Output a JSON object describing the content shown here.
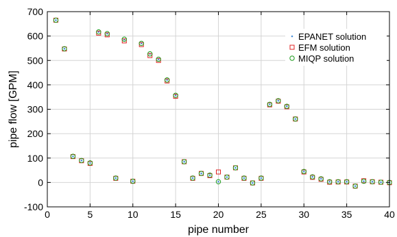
{
  "chart_data": {
    "type": "scatter",
    "title": "",
    "xlabel": "pipe number",
    "ylabel": "pipe flow [GPM]",
    "xlim": [
      0,
      40
    ],
    "ylim": [
      -100,
      700
    ],
    "xticks": [
      0,
      5,
      10,
      15,
      20,
      25,
      30,
      35,
      40
    ],
    "yticks": [
      -100,
      0,
      100,
      200,
      300,
      400,
      500,
      600,
      700
    ],
    "grid": true,
    "legend_position": "top-right",
    "x": [
      1,
      2,
      3,
      4,
      5,
      6,
      7,
      8,
      9,
      10,
      11,
      12,
      13,
      14,
      15,
      16,
      17,
      18,
      19,
      20,
      21,
      22,
      23,
      24,
      25,
      26,
      27,
      28,
      29,
      30,
      31,
      32,
      33,
      34,
      35,
      36,
      37,
      38,
      39,
      40
    ],
    "series": [
      {
        "name": "EPANET solution",
        "marker": "dot",
        "color": "#4a90d9",
        "values": [
          665,
          548,
          107,
          90,
          80,
          617,
          610,
          18,
          585,
          5,
          570,
          527,
          505,
          420,
          357,
          85,
          18,
          37,
          30,
          3,
          22,
          60,
          18,
          -2,
          18,
          320,
          335,
          312,
          260,
          45,
          23,
          15,
          3,
          3,
          3,
          -15,
          5,
          3,
          1,
          0
        ]
      },
      {
        "name": "EFM solution",
        "marker": "square",
        "color": "#e02020",
        "values": [
          665,
          547,
          106,
          89,
          78,
          612,
          605,
          17,
          580,
          5,
          565,
          520,
          500,
          416,
          353,
          85,
          17,
          37,
          28,
          43,
          22,
          60,
          17,
          -2,
          17,
          318,
          333,
          310,
          260,
          43,
          21,
          13,
          1,
          2,
          2,
          -15,
          7,
          3,
          1,
          -1
        ]
      },
      {
        "name": "MIQP solution",
        "marker": "circle",
        "color": "#1a9a1a",
        "values": [
          665,
          548,
          107,
          90,
          80,
          617,
          610,
          18,
          587,
          5,
          570,
          527,
          505,
          420,
          357,
          85,
          18,
          37,
          30,
          3,
          22,
          60,
          18,
          -2,
          18,
          320,
          335,
          312,
          260,
          45,
          23,
          15,
          3,
          3,
          3,
          -15,
          5,
          3,
          1,
          0
        ]
      }
    ]
  }
}
